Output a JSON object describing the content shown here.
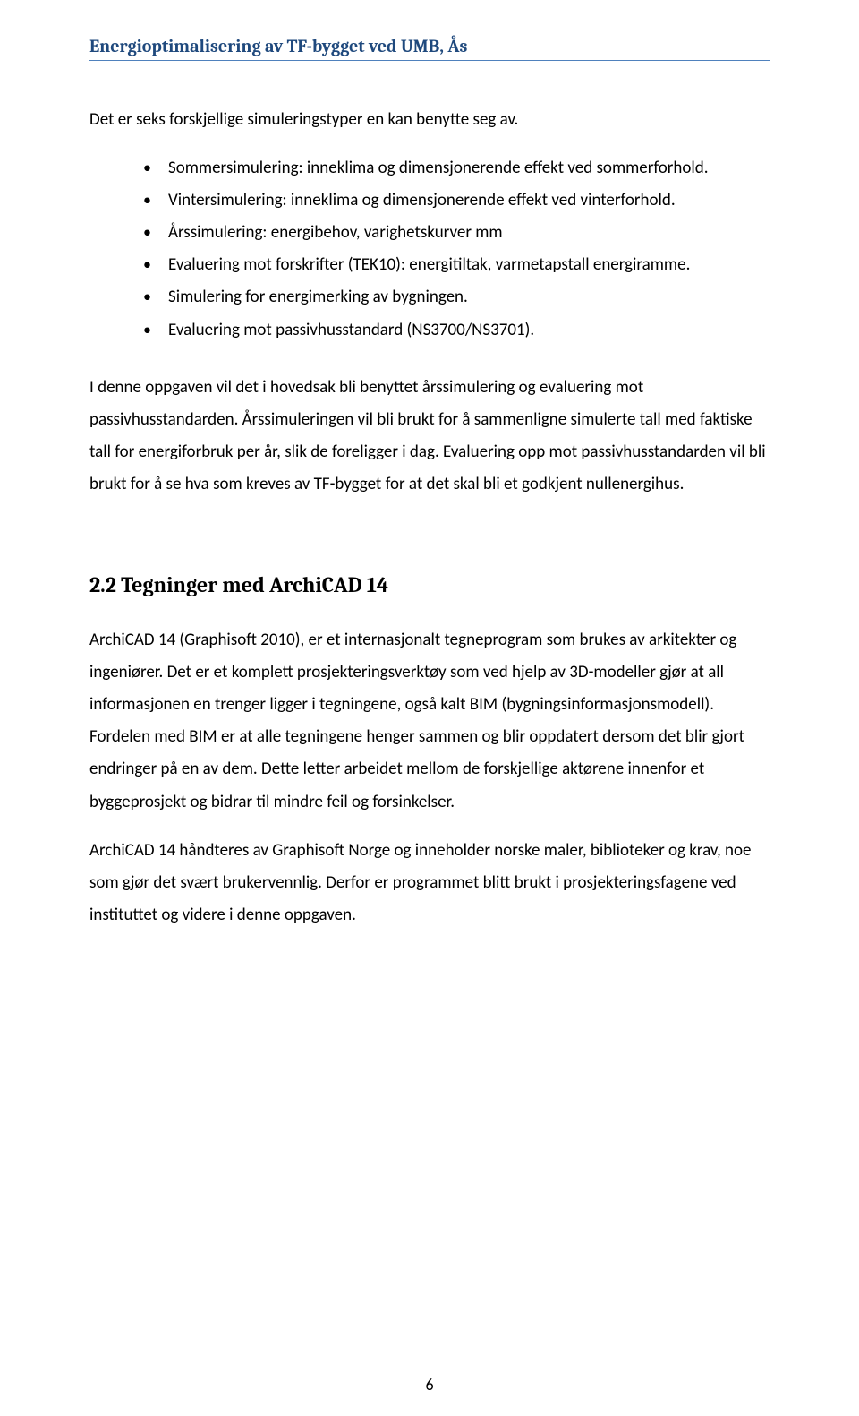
{
  "colors": {
    "header_text": "#1f497d",
    "rule": "#4f81bd",
    "body_text": "#000000",
    "background": "#ffffff"
  },
  "typography": {
    "body_font": "Calibri, Segoe UI, Arial, sans-serif",
    "heading_font": "Cambria, Georgia, Times New Roman, serif",
    "body_size_pt": 14,
    "header_size_pt": 15,
    "section_heading_size_pt": 18,
    "line_height": 1.9
  },
  "header": {
    "title": "Energioptimalisering av TF-bygget ved UMB, Ås"
  },
  "intro_line": "Det er seks forskjellige simuleringstyper en kan benytte seg av.",
  "bullets": [
    "Sommersimulering: inneklima og dimensjonerende effekt ved sommerforhold.",
    "Vintersimulering: inneklima og dimensjonerende effekt ved vinterforhold.",
    "Årssimulering: energibehov, varighetskurver mm",
    "Evaluering mot forskrifter (TEK10): energitiltak, varmetapstall energiramme.",
    "Simulering for energimerking av bygningen.",
    "Evaluering mot passivhusstandard (NS3700/NS3701)."
  ],
  "paragraph_1": "I denne oppgaven vil det i hovedsak bli benyttet årssimulering og evaluering mot passivhusstandarden. Årssimuleringen vil bli brukt for å sammenligne simulerte tall med faktiske tall for energiforbruk per år, slik de foreligger i dag. Evaluering opp mot passivhusstandarden vil bli brukt for å se hva som kreves av TF-bygget for at det skal bli et godkjent nullenergihus.",
  "section_heading": "2.2 Tegninger med ArchiCAD 14",
  "paragraph_2": "ArchiCAD 14 (Graphisoft 2010), er et internasjonalt tegneprogram som brukes av arkitekter og ingeniører. Det er et komplett prosjekteringsverktøy som ved hjelp av 3D-modeller gjør at all informasjonen en trenger ligger i tegningene, også kalt BIM (bygningsinformasjonsmodell). Fordelen med BIM er at alle tegningene henger sammen og blir oppdatert dersom det blir gjort endringer på en av dem. Dette letter arbeidet mellom de forskjellige aktørene innenfor et byggeprosjekt og bidrar til mindre feil og forsinkelser.",
  "paragraph_3": "ArchiCAD 14 håndteres av Graphisoft Norge og inneholder norske maler, biblioteker og krav, noe som gjør det svært brukervennlig. Derfor er programmet blitt brukt i prosjekteringsfagene ved instituttet og videre i denne oppgaven.",
  "page_number": "6"
}
